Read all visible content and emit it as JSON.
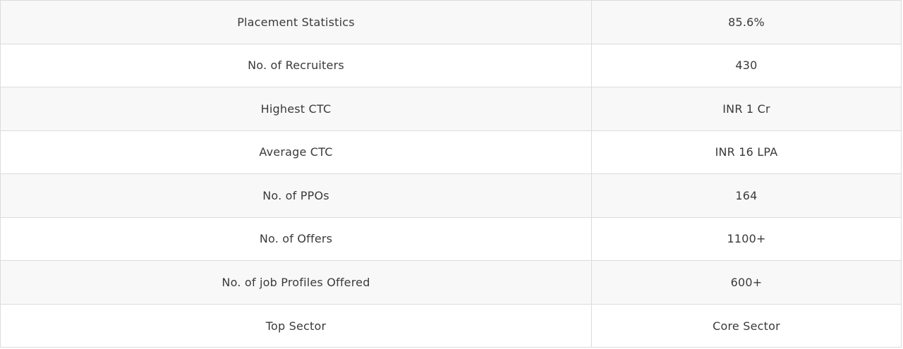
{
  "table": {
    "rows": [
      {
        "label": "Placement Statistics",
        "value": "85.6%"
      },
      {
        "label": "No. of Recruiters",
        "value": "430"
      },
      {
        "label": "Highest CTC",
        "value": "INR 1 Cr"
      },
      {
        "label": "Average CTC",
        "value": "INR 16 LPA"
      },
      {
        "label": "No. of PPOs",
        "value": "164"
      },
      {
        "label": "No. of Offers",
        "value": "1100+"
      },
      {
        "label": "No. of job Profiles Offered",
        "value": "600+"
      },
      {
        "label": "Top Sector",
        "value": "Core Sector"
      }
    ]
  }
}
